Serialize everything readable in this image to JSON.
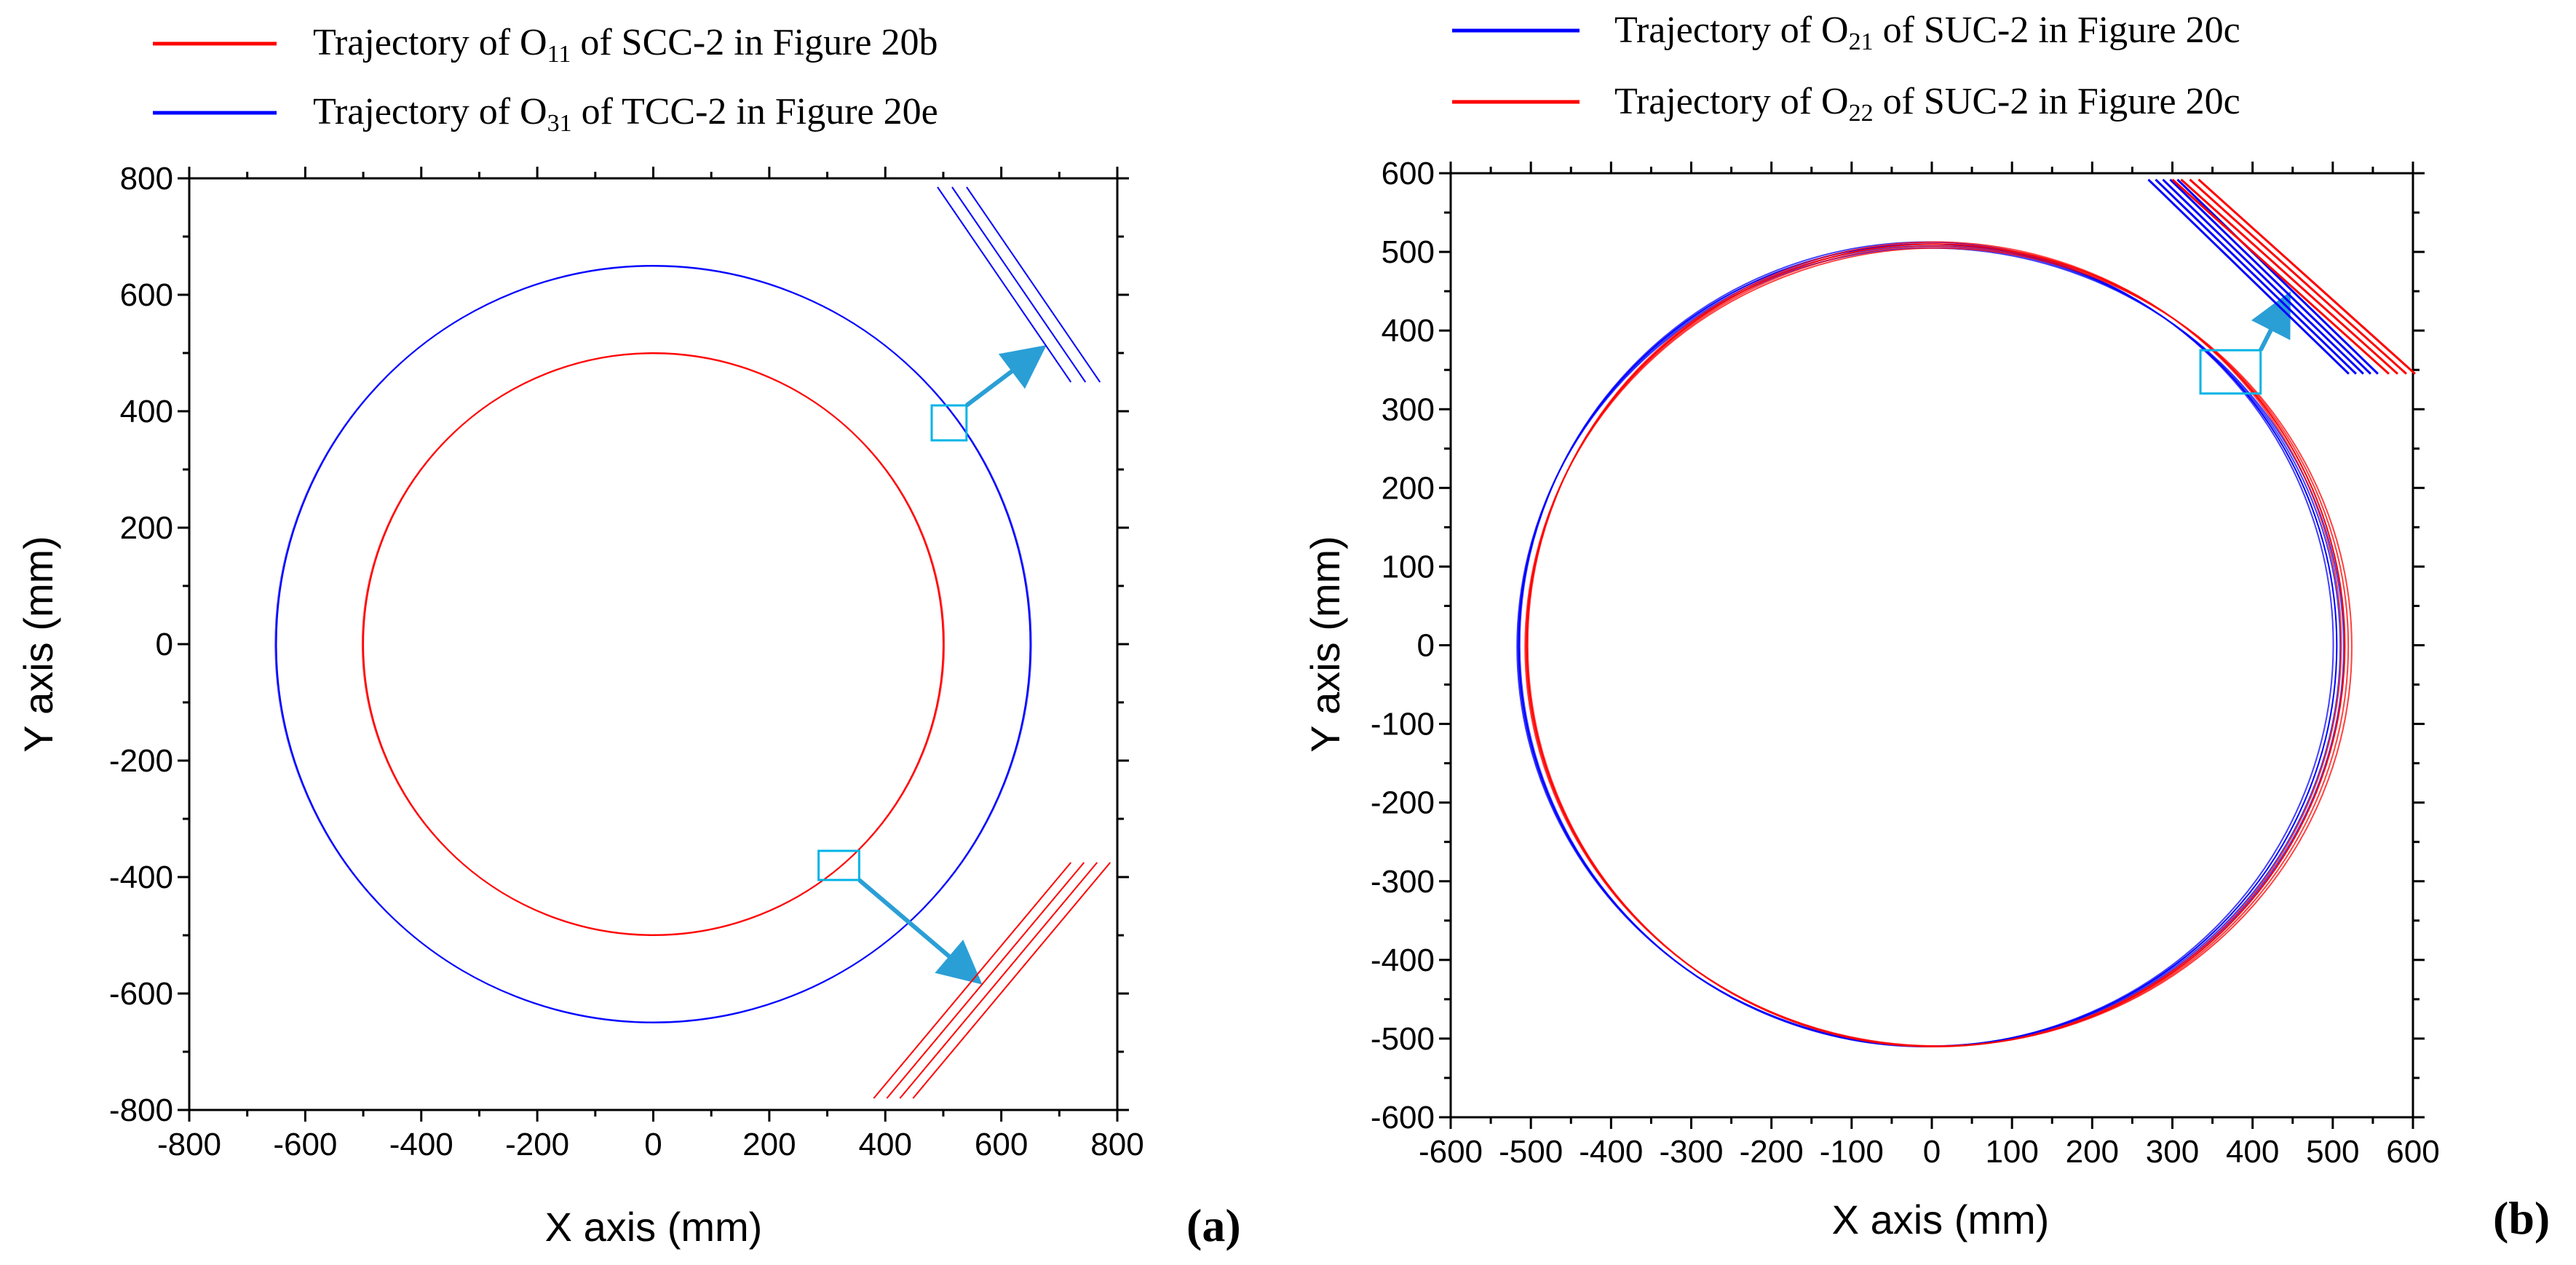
{
  "chart_data": [
    {
      "type": "line",
      "panel_label": "(a)",
      "xlabel": "X axis (mm)",
      "ylabel": "Y axis (mm)",
      "xlim": [
        -800,
        800
      ],
      "ylim": [
        -800,
        800
      ],
      "ticks": [
        -800,
        -600,
        -400,
        -200,
        0,
        200,
        400,
        600,
        800
      ],
      "tick_labels": [
        "-800",
        "-600",
        "-400",
        "-200",
        "0",
        "200",
        "400",
        "600",
        "800"
      ],
      "series": [
        {
          "name": "Trajectory of O11 of SCC-2 in Figure 20b",
          "legend_text": "Trajectory of O",
          "legend_sub": "11",
          "legend_suffix": " of SCC-2 in Figure 20b",
          "shape": "circle",
          "center": [
            0,
            0
          ],
          "radius": 500,
          "color": "#ff0000"
        },
        {
          "name": "Trajectory of O31 of TCC-2 in Figure 20e",
          "legend_text": "Trajectory of O",
          "legend_sub": "31",
          "legend_suffix": " of TCC-2 in Figure 20e",
          "shape": "circle",
          "center": [
            0,
            0
          ],
          "radius": 650,
          "color": "#0000ff"
        }
      ],
      "zoom_boxes": [
        {
          "series": 1,
          "x": [
            480,
            540
          ],
          "y": [
            350,
            410
          ],
          "arrow_to": [
            660,
            500
          ]
        },
        {
          "series": 0,
          "x": [
            285,
            355
          ],
          "y": [
            -405,
            -355
          ],
          "arrow_to": [
            550,
            -570
          ]
        }
      ],
      "inset_lines": [
        {
          "color": "#0000ff",
          "from": [
            490,
            785
          ],
          "to": [
            720,
            450
          ],
          "count": 3,
          "spacing": 20
        },
        {
          "color": "#ff0000",
          "from": [
            380,
            -780
          ],
          "to": [
            720,
            -375
          ],
          "count": 4,
          "spacing": 18
        }
      ]
    },
    {
      "type": "line",
      "panel_label": "(b)",
      "xlabel": "X axis (mm)",
      "ylabel": "Y axis (mm)",
      "xlim": [
        -600,
        600
      ],
      "ylim": [
        -600,
        600
      ],
      "ticks": [
        -600,
        -500,
        -400,
        -300,
        -200,
        -100,
        0,
        100,
        200,
        300,
        400,
        500,
        600
      ],
      "tick_labels": [
        "-600",
        "-500",
        "-400",
        "-300",
        "-200",
        "-100",
        "0",
        "100",
        "200",
        "300",
        "400",
        "500",
        "600"
      ],
      "series": [
        {
          "name": "Trajectory of O21 of SUC-2 in Figure 20c",
          "legend_text": "Trajectory of O",
          "legend_sub": "21",
          "legend_suffix": " of SUC-2 in Figure 20c",
          "shape": "circle",
          "center": [
            -5,
            0
          ],
          "radius": 510,
          "color": "#0000ff"
        },
        {
          "name": "Trajectory of O22 of SUC-2 in Figure 20c",
          "legend_text": "Trajectory of O",
          "legend_sub": "22",
          "legend_suffix": " of SUC-2 in Figure 20c",
          "shape": "circle",
          "center": [
            5,
            0
          ],
          "radius": 510,
          "color": "#ff0000"
        }
      ],
      "zoom_boxes": [
        {
          "series": 0,
          "x": [
            335,
            410
          ],
          "y": [
            320,
            375
          ],
          "arrow_to": [
            440,
            435
          ]
        }
      ],
      "inset_lines": [
        {
          "color": "#0000ff",
          "from": [
            270,
            592
          ],
          "to": [
            520,
            345
          ],
          "count": 5,
          "spacing": 10
        },
        {
          "color": "#ff0000",
          "from": [
            300,
            592
          ],
          "to": [
            570,
            345
          ],
          "count": 4,
          "spacing": 12
        }
      ]
    }
  ],
  "colors": {
    "zoom_box": "#00b4e6",
    "arrow": "#2a9fd6"
  }
}
